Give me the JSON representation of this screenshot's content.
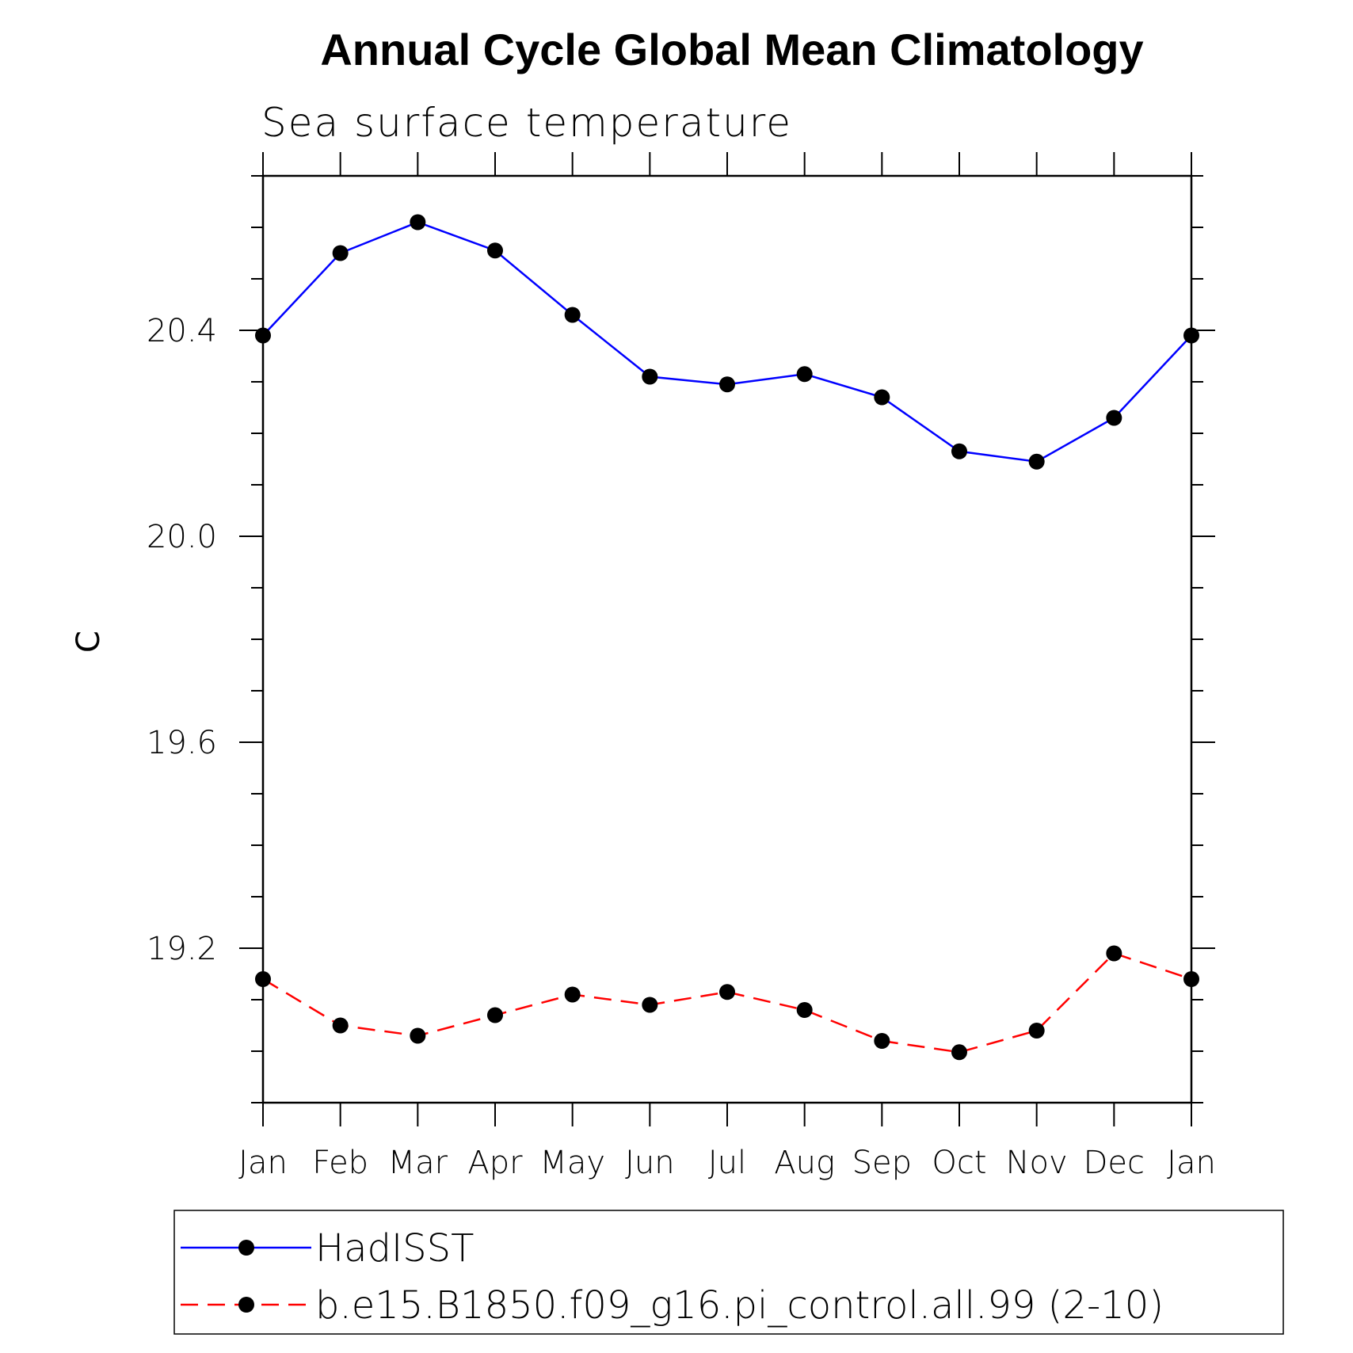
{
  "chart_data": {
    "type": "line",
    "title": "Annual Cycle Global Mean Climatology",
    "subtitle": "Sea surface temperature",
    "ylabel": "C",
    "xlabel": "",
    "categories": [
      "Jan",
      "Feb",
      "Mar",
      "Apr",
      "May",
      "Jun",
      "Jul",
      "Aug",
      "Sep",
      "Oct",
      "Nov",
      "Dec",
      "Jan"
    ],
    "ylim": [
      18.9,
      20.7
    ],
    "yticks": [
      19.2,
      19.6,
      20.0,
      20.4
    ],
    "ytick_labels": [
      "19.2",
      "19.6",
      "20.0",
      "20.4"
    ],
    "grid": false,
    "legend_position": "bottom",
    "series": [
      {
        "name": "HadISST",
        "color": "#0000ff",
        "line_style": "solid",
        "marker": "filled-circle",
        "values": [
          20.39,
          20.55,
          20.61,
          20.555,
          20.43,
          20.31,
          20.295,
          20.315,
          20.27,
          20.165,
          20.145,
          20.23,
          20.39
        ]
      },
      {
        "name": "b.e15.B1850.f09_g16.pi_control.all.99 (2-10)",
        "color": "#ff0000",
        "line_style": "dashed",
        "marker": "filled-circle",
        "values": [
          19.14,
          19.05,
          19.03,
          19.07,
          19.11,
          19.09,
          19.115,
          19.08,
          19.02,
          18.998,
          19.04,
          19.19,
          19.14
        ]
      }
    ]
  }
}
